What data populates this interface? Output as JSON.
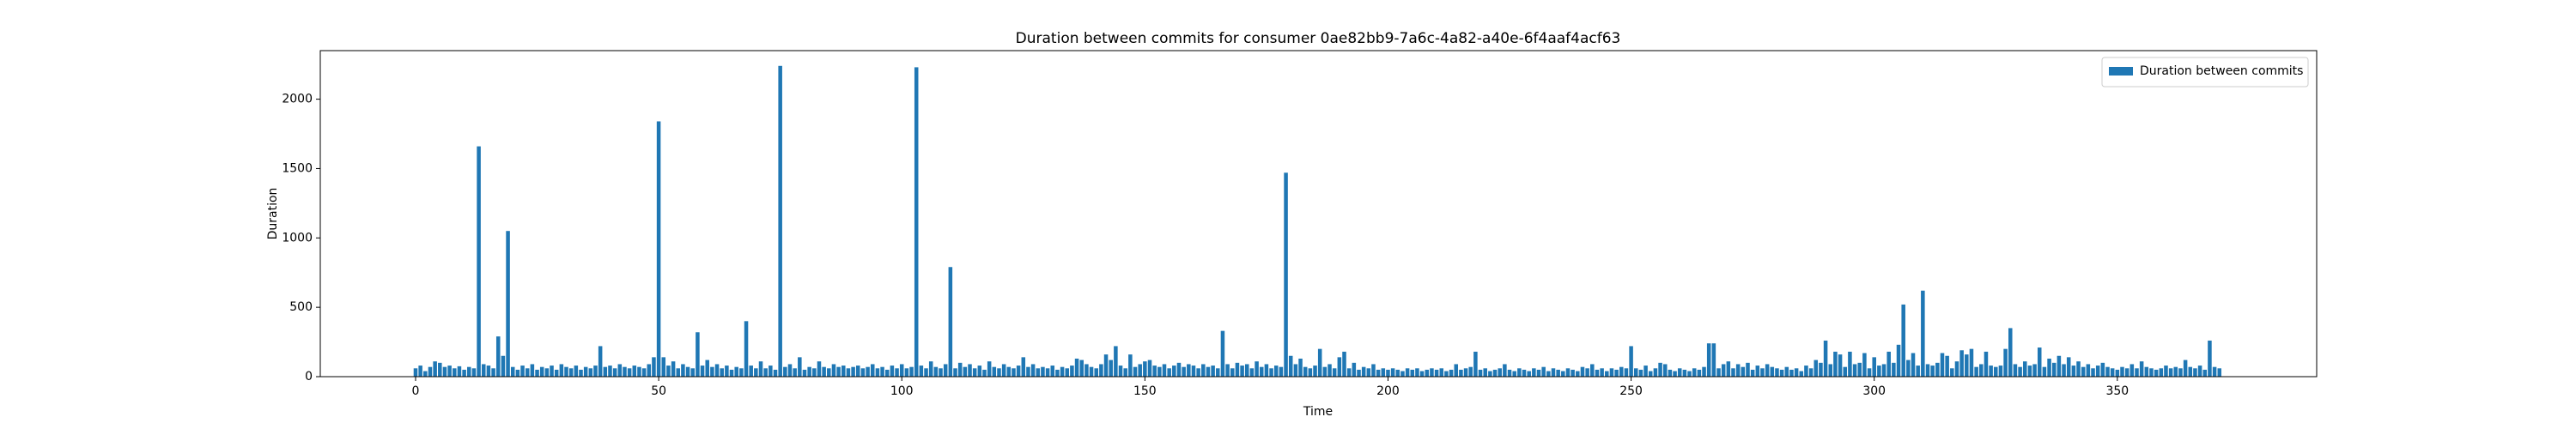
{
  "chart_data": {
    "type": "bar",
    "title": "Duration between commits for consumer 0ae82bb9-7a6c-4a82-a40e-6f4aaf4acf63",
    "x_label": "Time",
    "y_label": "Duration",
    "legend": "upper right",
    "xlim": [
      -19.6,
      391
    ],
    "xticks": [
      0,
      50,
      100,
      150,
      200,
      250,
      300,
      350
    ],
    "ylim": [
      0,
      2350
    ],
    "yticks": [
      0,
      500,
      1000,
      1500,
      2000
    ],
    "series": [
      {
        "name": "Duration between commits",
        "color": "#1f77b4",
        "values": [
          60,
          80,
          40,
          70,
          110,
          100,
          70,
          80,
          60,
          75,
          50,
          70,
          60,
          1660,
          90,
          80,
          60,
          290,
          150,
          1050,
          70,
          50,
          80,
          60,
          90,
          50,
          70,
          60,
          80,
          50,
          90,
          70,
          60,
          80,
          50,
          70,
          60,
          80,
          220,
          70,
          80,
          60,
          90,
          70,
          60,
          80,
          70,
          60,
          90,
          140,
          1840,
          140,
          80,
          110,
          60,
          90,
          70,
          60,
          320,
          80,
          120,
          70,
          90,
          60,
          80,
          50,
          70,
          60,
          400,
          80,
          60,
          110,
          60,
          80,
          50,
          2240,
          70,
          90,
          60,
          140,
          50,
          70,
          60,
          110,
          70,
          60,
          90,
          70,
          80,
          60,
          70,
          80,
          60,
          70,
          90,
          60,
          70,
          50,
          80,
          60,
          90,
          60,
          70,
          2230,
          80,
          60,
          110,
          70,
          60,
          90,
          790,
          60,
          100,
          70,
          90,
          60,
          80,
          50,
          110,
          70,
          60,
          90,
          70,
          60,
          80,
          140,
          70,
          90,
          60,
          70,
          60,
          80,
          50,
          70,
          60,
          80,
          130,
          120,
          90,
          70,
          60,
          90,
          160,
          120,
          220,
          80,
          60,
          160,
          70,
          90,
          110,
          120,
          80,
          70,
          90,
          60,
          80,
          100,
          70,
          90,
          80,
          60,
          90,
          70,
          80,
          60,
          330,
          90,
          60,
          100,
          80,
          90,
          60,
          110,
          70,
          90,
          60,
          80,
          70,
          1470,
          150,
          90,
          130,
          70,
          60,
          80,
          200,
          70,
          90,
          60,
          140,
          180,
          60,
          100,
          50,
          70,
          60,
          90,
          50,
          60,
          50,
          60,
          50,
          40,
          60,
          50,
          60,
          40,
          50,
          60,
          50,
          60,
          40,
          50,
          90,
          50,
          60,
          70,
          180,
          50,
          60,
          40,
          50,
          60,
          90,
          50,
          40,
          60,
          50,
          40,
          60,
          50,
          70,
          40,
          60,
          50,
          40,
          60,
          50,
          40,
          70,
          60,
          90,
          50,
          60,
          40,
          60,
          50,
          70,
          60,
          220,
          60,
          50,
          80,
          40,
          60,
          100,
          90,
          50,
          40,
          60,
          50,
          40,
          60,
          50,
          70,
          240,
          240,
          60,
          90,
          110,
          60,
          90,
          70,
          100,
          50,
          80,
          60,
          90,
          70,
          60,
          50,
          70,
          50,
          60,
          40,
          80,
          60,
          120,
          100,
          260,
          90,
          180,
          160,
          70,
          180,
          90,
          100,
          170,
          60,
          140,
          80,
          90,
          180,
          100,
          230,
          520,
          120,
          170,
          80,
          620,
          90,
          80,
          100,
          170,
          150,
          60,
          110,
          190,
          160,
          200,
          70,
          90,
          180,
          80,
          70,
          80,
          200,
          350,
          90,
          70,
          110,
          80,
          90,
          210,
          70,
          130,
          100,
          150,
          90,
          140,
          80,
          110,
          70,
          90,
          60,
          80,
          100,
          70,
          60,
          50,
          70,
          60,
          90,
          60,
          110,
          70,
          60,
          50,
          60,
          80,
          60,
          70,
          60,
          120,
          70,
          60,
          80,
          50,
          260,
          70,
          60
        ]
      }
    ]
  }
}
